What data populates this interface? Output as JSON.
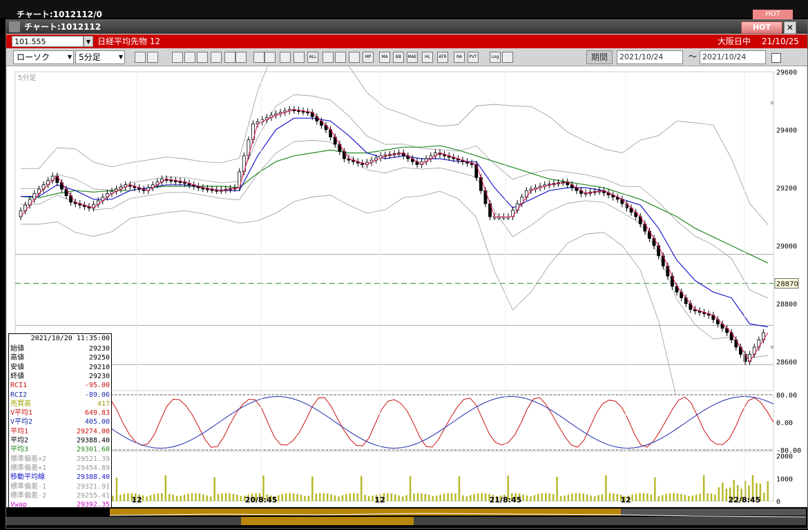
{
  "background_window": {
    "title": "チャート:1012112/0",
    "hot": "HOT"
  },
  "window": {
    "title": "チャート:1012112",
    "hot_label": "HOT",
    "close_label": "✕"
  },
  "infobar": {
    "code": "101.555",
    "instrument": "日経平均先物 12",
    "market": "大阪日中",
    "date": "21/10/25"
  },
  "toolbar": {
    "chart_type": "ローソク",
    "interval": "5分足",
    "icons": [
      "zoom-icon",
      "cursor-icon",
      "buy-icon",
      "search-chart-icon",
      "compare-icon",
      "trade-icon",
      "script-icon",
      "pen-icon",
      "arrow-icon",
      "refresh-icon",
      "candle-icon",
      "bar-icon",
      "all-icon",
      "settings-icon",
      "tool-icon",
      "color-icon",
      "mp-icon",
      "ma-icon",
      "bb-icon",
      "mae-icon",
      "hl-icon",
      "atr-icon",
      "ra-icon",
      "pvt-icon",
      "log-icon",
      "export-icon"
    ],
    "text_buttons": {
      "ma": "MA",
      "bb": "BB",
      "mae": "MAE",
      "hl": "HL",
      "atr": "ATR",
      "ra": "RA",
      "pvt": "PVT",
      "log": "Log",
      "all": "ALL",
      "mp": "MP"
    },
    "period_label": "期間",
    "date_from": "2021/10/24",
    "date_to": "2021/10/24",
    "tilde": "～"
  },
  "chart": {
    "interval_label": "5分足",
    "price_axis": [
      "29600",
      "29400",
      "29200",
      "29000",
      "28800",
      "28600"
    ],
    "current_price_tag": "28870",
    "rci_axis": [
      "80.00",
      "0.00",
      "-80.00"
    ],
    "volume_axis": [
      "2000",
      "1000",
      "0"
    ],
    "time_axis": [
      "12",
      "20/8:45",
      "12",
      "21/8:45",
      "12",
      "22/8:45"
    ],
    "colors": {
      "up": "#ffffff",
      "down": "#000000",
      "ma1": "#e8125a",
      "ma2": "#1a1acc",
      "ma3": "#228822",
      "bands": "#999999",
      "volume": "#b8b82a",
      "rci1": "#cc1111",
      "rci2": "#1a2aaa"
    }
  },
  "chart_data": {
    "type": "line",
    "title": "",
    "xlabel": "",
    "ylabel": "",
    "ylim": [
      28500,
      29600
    ],
    "x_ticks": [
      "12",
      "20/8:45",
      "12",
      "21/8:45",
      "12",
      "22/8:45"
    ],
    "series": [
      {
        "name": "",
        "values": [
          29100,
          29180,
          29240,
          29150,
          29130,
          29180,
          29210,
          29190,
          29230,
          29220,
          29200,
          29190,
          29200,
          29420,
          29450,
          29470,
          29460,
          29400,
          29300,
          29280,
          29310,
          29320,
          29280,
          29320,
          29300,
          29280,
          29100,
          29100,
          29190,
          29210,
          29220,
          29180,
          29190,
          29160,
          29100,
          29000,
          28860,
          28780,
          28760,
          28700,
          28600,
          28700
        ]
      },
      {
        "name": "",
        "values": [
          29170,
          29170,
          29210,
          29190,
          29160,
          29160,
          29190,
          29200,
          29210,
          29210,
          29200,
          29190,
          29190,
          29310,
          29400,
          29440,
          29440,
          29430,
          29380,
          29320,
          29300,
          29310,
          29300,
          29300,
          29290,
          29290,
          29200,
          29130,
          29160,
          29190,
          29200,
          29200,
          29190,
          29160,
          29140,
          29060,
          28950,
          28880,
          28840,
          28820,
          28730,
          28720
        ]
      },
      {
        "name": "",
        "values": [
          29170,
          29165,
          29180,
          29190,
          29185,
          29190,
          29190,
          29200,
          29205,
          29205,
          29205,
          29205,
          29200,
          29250,
          29290,
          29310,
          29320,
          29330,
          29320,
          29320,
          29330,
          29340,
          29340,
          29345,
          29330,
          29310,
          29290,
          29270,
          29250,
          29230,
          29220,
          29210,
          29200,
          29180,
          29160,
          29130,
          29100,
          29060,
          29030,
          29000,
          28970,
          28940
        ]
      }
    ]
  },
  "panel": {
    "datetime": "2021/10/20 11:35:00",
    "rows": [
      {
        "label": "始値",
        "value": "29230",
        "color": "#000000"
      },
      {
        "label": "高値",
        "value": "29250",
        "color": "#000000"
      },
      {
        "label": "安値",
        "value": "29210",
        "color": "#000000"
      },
      {
        "label": "終値",
        "value": "29230",
        "color": "#000000"
      },
      {
        "label": "RCI1",
        "value": "-95.00",
        "color": "#cc1111"
      },
      {
        "label": "RCI2",
        "value": "-89.06",
        "color": "#1a2aaa"
      },
      {
        "label": "売買高",
        "value": "417",
        "color": "#a0a000"
      },
      {
        "label": "V平均1",
        "value": "649.83",
        "color": "#cc1111"
      },
      {
        "label": "V平均2",
        "value": "405.00",
        "color": "#1a2aaa"
      },
      {
        "label": "平均1",
        "value": "29274.00",
        "color": "#cc1111"
      },
      {
        "label": "平均2",
        "value": "29388.40",
        "color": "#000000"
      },
      {
        "label": "平均3",
        "value": "29301.60",
        "color": "#228822"
      },
      {
        "label": "標準偏差+2",
        "value": "29521.39",
        "color": "#999999"
      },
      {
        "label": "標準偏差+1",
        "value": "29454.89",
        "color": "#999999"
      },
      {
        "label": "移動平均線",
        "value": "29388.40",
        "color": "#1a1acc"
      },
      {
        "label": "標準偏差-1",
        "value": "29321.91",
        "color": "#999999"
      },
      {
        "label": "標準偏差-2",
        "value": "29255.41",
        "color": "#999999"
      },
      {
        "label": "Vwap",
        "value": "29392.35",
        "color": "#cc11cc"
      }
    ]
  }
}
